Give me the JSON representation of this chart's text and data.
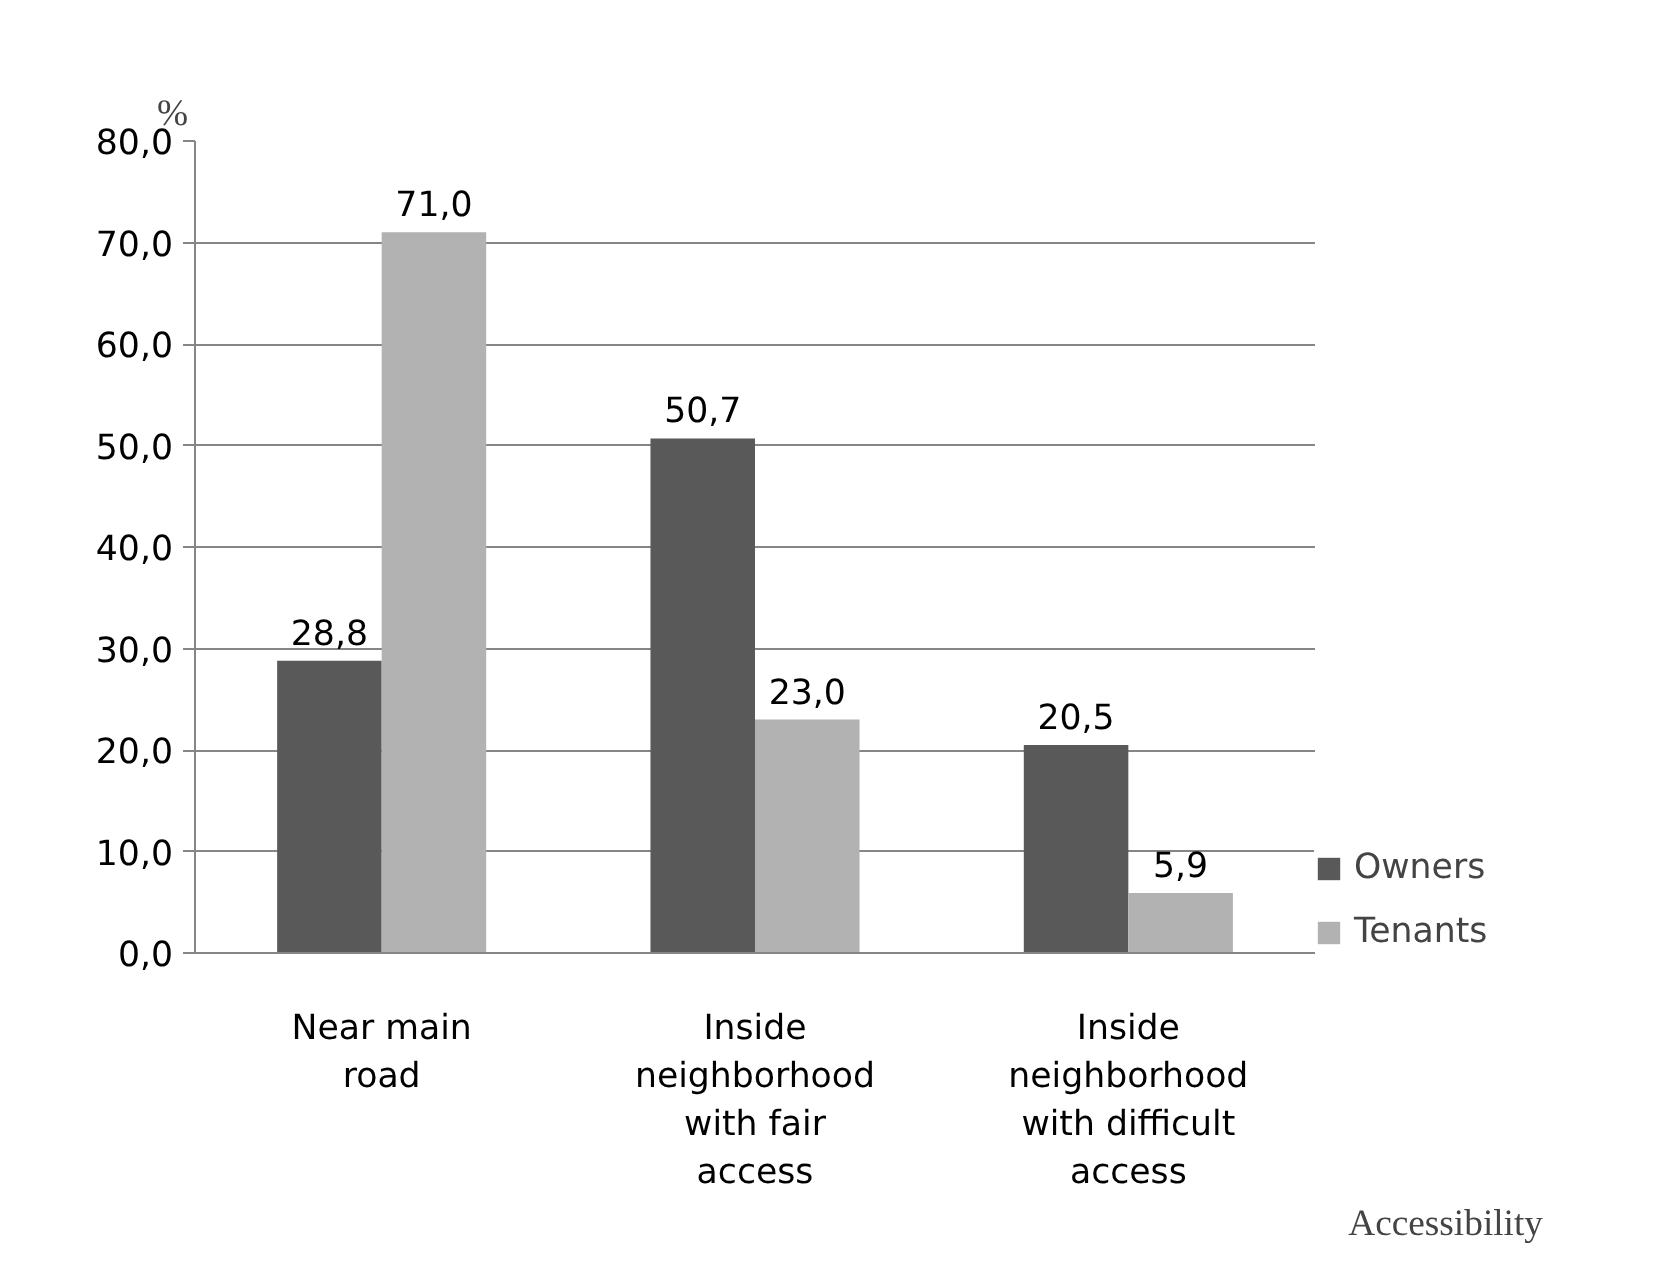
{
  "chart_data": {
    "type": "bar",
    "ylabel": "%",
    "xlabel": "Accessibility",
    "categories": [
      "Near main\nroad",
      "Inside\nneighborhood\nwith fair\naccess",
      "Inside\nneighborhood\nwith difficult\naccess"
    ],
    "series": [
      {
        "name": "Owners",
        "color": "#595959",
        "values": [
          28.8,
          50.7,
          20.5
        ],
        "value_labels": [
          "28,8",
          "50,7",
          "20,5"
        ]
      },
      {
        "name": "Tenants",
        "color": "#b2b2b2",
        "values": [
          71.0,
          23.0,
          5.9
        ],
        "value_labels": [
          "71,0",
          "23,0",
          "5,9"
        ]
      }
    ],
    "ylim": [
      0,
      80
    ],
    "yticks": [
      {
        "value": 0,
        "label": "0,0"
      },
      {
        "value": 10,
        "label": "10,0"
      },
      {
        "value": 20,
        "label": "20,0"
      },
      {
        "value": 30,
        "label": "30,0"
      },
      {
        "value": 40,
        "label": "40,0"
      },
      {
        "value": 50,
        "label": "50,0"
      },
      {
        "value": 60,
        "label": "60,0"
      },
      {
        "value": 70,
        "label": "70,0"
      },
      {
        "value": 80,
        "label": "80,0"
      }
    ],
    "grid": "y",
    "legend": "right"
  }
}
